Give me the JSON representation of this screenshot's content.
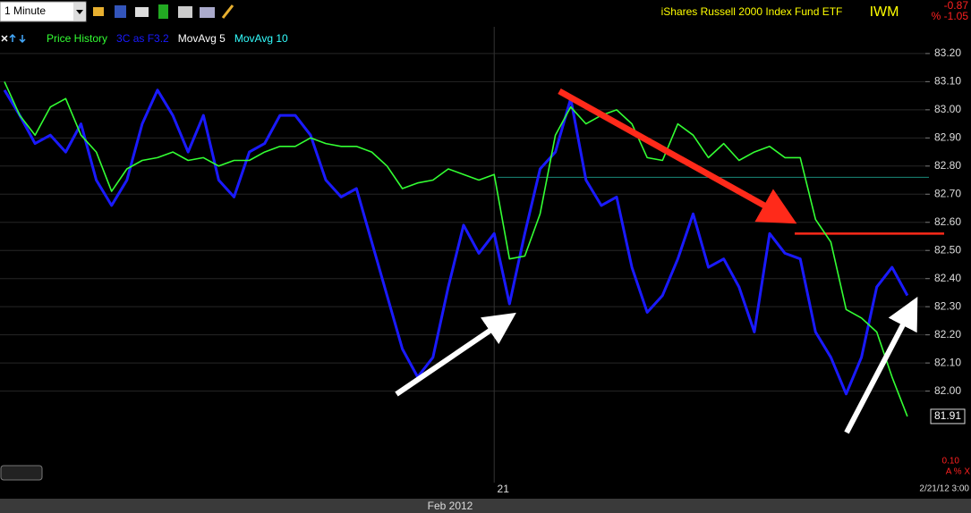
{
  "chart_data": {
    "type": "line",
    "interval": "1 Minute",
    "title": "iShares Russell 2000 Index Fund ETF",
    "symbol": "IWM",
    "change": "-0.87",
    "change_percent": "% -1.05",
    "categories": [
      null,
      null,
      null,
      null,
      null,
      null,
      null,
      null,
      null,
      null,
      null,
      null,
      null,
      null,
      null,
      null,
      null,
      null,
      null,
      null,
      null,
      null,
      null,
      null,
      null,
      null,
      null,
      null,
      null,
      null,
      null,
      null,
      "21",
      null,
      null,
      null,
      null,
      null,
      null,
      null,
      null,
      null,
      null,
      null,
      null,
      null,
      null,
      null,
      null,
      null,
      null,
      null,
      null,
      null,
      null,
      null,
      null,
      null,
      null,
      null
    ],
    "x_axis_label": "Feb 2012",
    "series": [
      {
        "name": "Price History",
        "color": "#33ff33",
        "width": 1.6,
        "values": [
          83.1,
          82.98,
          82.91,
          83.01,
          83.04,
          82.91,
          82.85,
          82.71,
          82.79,
          82.82,
          82.83,
          82.85,
          82.82,
          82.83,
          82.8,
          82.82,
          82.82,
          82.85,
          82.87,
          82.87,
          82.9,
          82.88,
          82.87,
          82.87,
          82.85,
          82.8,
          82.72,
          82.74,
          82.75,
          82.79,
          82.77,
          82.75,
          82.77,
          82.47,
          82.48,
          82.63,
          82.91,
          83.01,
          82.95,
          82.98,
          83.0,
          82.95,
          82.83,
          82.82,
          82.95,
          82.91,
          82.83,
          82.88,
          82.82,
          82.85,
          82.87,
          82.83,
          82.83,
          82.61,
          82.53,
          82.29,
          82.26,
          82.21,
          82.05,
          81.91
        ]
      },
      {
        "name": "3C as F3.2",
        "color": "#1a1aff",
        "width": 3,
        "values": [
          83.07,
          82.98,
          82.88,
          82.91,
          82.85,
          82.95,
          82.75,
          82.66,
          82.75,
          82.95,
          83.07,
          82.98,
          82.85,
          82.98,
          82.75,
          82.69,
          82.85,
          82.88,
          82.98,
          82.98,
          82.91,
          82.75,
          82.69,
          82.72,
          82.53,
          82.34,
          82.15,
          82.05,
          82.12,
          82.37,
          82.59,
          82.49,
          82.56,
          82.31,
          82.56,
          82.79,
          82.85,
          83.04,
          82.75,
          82.66,
          82.69,
          82.44,
          82.28,
          82.34,
          82.47,
          82.63,
          82.44,
          82.47,
          82.37,
          82.21,
          82.56,
          82.49,
          82.47,
          82.21,
          82.12,
          81.99,
          82.12,
          82.37,
          82.44,
          82.34
        ]
      }
    ],
    "indicators": [
      {
        "name": "MovAvg 5",
        "color": "#ffffff"
      },
      {
        "name": "MovAvg 10",
        "color": "#33ffff"
      }
    ],
    "reference_lines": [
      {
        "value": 82.56,
        "color": "#ff2a1a"
      },
      {
        "value": 82.76,
        "color": "#1a8a7a"
      }
    ],
    "ylim": [
      81.77,
      83.295
    ],
    "yticks": [
      {
        "value": 82.0,
        "label": "82.00"
      },
      {
        "value": 82.1,
        "label": "82.10"
      },
      {
        "value": 82.2,
        "label": "82.20"
      },
      {
        "value": 82.3,
        "label": "82.30"
      },
      {
        "value": 82.4,
        "label": "82.40"
      },
      {
        "value": 82.5,
        "label": "82.50"
      },
      {
        "value": 82.6,
        "label": "82.60"
      },
      {
        "value": 82.7,
        "label": "82.70"
      },
      {
        "value": 82.8,
        "label": "82.80"
      },
      {
        "value": 82.9,
        "label": "82.90"
      },
      {
        "value": 83.0,
        "label": "83.00"
      },
      {
        "value": 83.1,
        "label": "83.10"
      },
      {
        "value": 83.2,
        "label": "83.20"
      }
    ],
    "grid": true,
    "lower_pane_value": "0.10",
    "lower_pane_controls": "A % X",
    "timestamp": "2/21/12 3:00"
  }
}
